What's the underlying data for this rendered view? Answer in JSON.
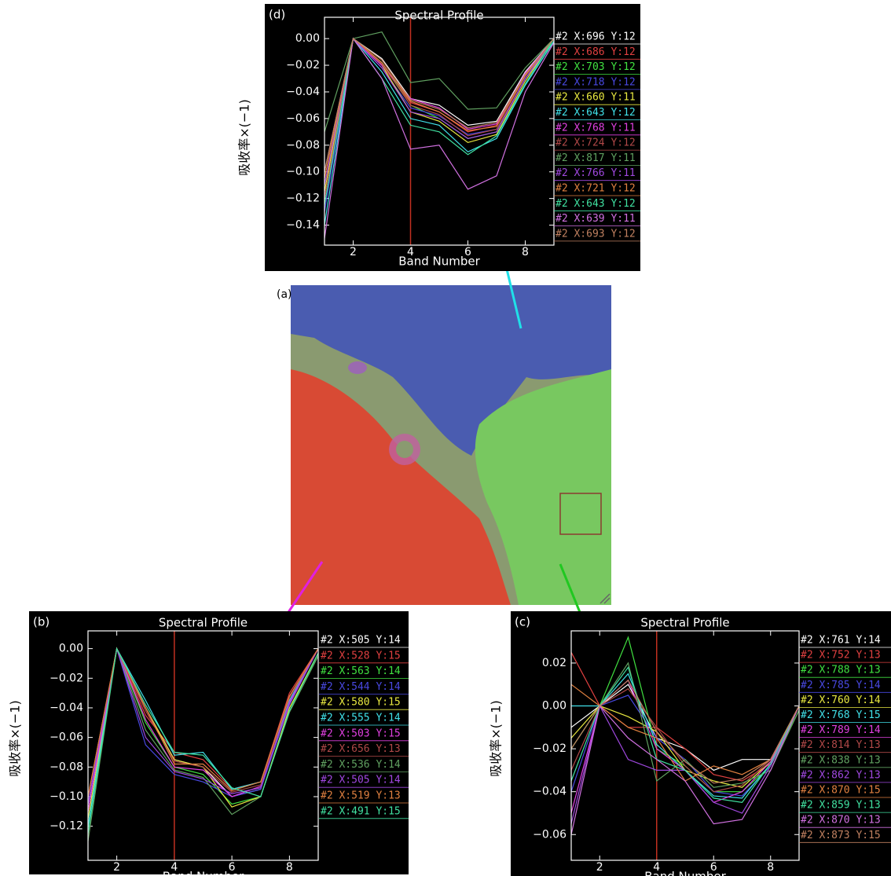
{
  "chart_data": [
    {
      "type": "line",
      "panel": "(d)",
      "title": "Spectral Profile",
      "x_label": "Band Number",
      "y_label": "吸收率×(−1)",
      "x": [
        1,
        2,
        3,
        4,
        5,
        6,
        7,
        8,
        9
      ],
      "xlim": [
        1,
        9
      ],
      "ylim": [
        -0.155,
        0.016
      ],
      "xticks": [
        2,
        4,
        6,
        8
      ],
      "yticks": [
        {
          "value": 0,
          "label": "0.00"
        },
        {
          "value": -0.02,
          "label": "−0.02"
        },
        {
          "value": -0.04,
          "label": "−0.04"
        },
        {
          "value": -0.06,
          "label": "−0.06"
        },
        {
          "value": -0.08,
          "label": "−0.08"
        },
        {
          "value": -0.1,
          "label": "−0.10"
        },
        {
          "value": -0.12,
          "label": "−0.12"
        },
        {
          "value": -0.14,
          "label": "−0.14"
        }
      ],
      "vertical_line": 4,
      "vertical_line_color": "#c03020",
      "series": [
        {
          "name": "#2 X:696 Y:12",
          "color": "#ffffff",
          "values": [
            -0.12,
            0,
            -0.015,
            -0.045,
            -0.05,
            -0.065,
            -0.062,
            -0.025,
            0
          ]
        },
        {
          "name": "#2 X:686 Y:12",
          "color": "#e04040",
          "values": [
            -0.11,
            0,
            -0.02,
            -0.048,
            -0.055,
            -0.07,
            -0.065,
            -0.028,
            0
          ]
        },
        {
          "name": "#2 X:703 Y:12",
          "color": "#40e040",
          "values": [
            -0.1,
            0,
            -0.018,
            -0.05,
            -0.06,
            -0.075,
            -0.07,
            -0.03,
            -0.002
          ]
        },
        {
          "name": "#2 X:718 Y:12",
          "color": "#4848e0",
          "values": [
            -0.13,
            0,
            -0.022,
            -0.052,
            -0.058,
            -0.072,
            -0.068,
            -0.03,
            0
          ]
        },
        {
          "name": "#2 X:660 Y:11",
          "color": "#e8e840",
          "values": [
            -0.115,
            0,
            -0.02,
            -0.055,
            -0.062,
            -0.078,
            -0.072,
            -0.032,
            0
          ]
        },
        {
          "name": "#2 X:643 Y:12",
          "color": "#40e0e8",
          "values": [
            -0.14,
            0,
            -0.025,
            -0.06,
            -0.065,
            -0.085,
            -0.075,
            -0.035,
            -0.002
          ]
        },
        {
          "name": "#2 X:768 Y:11",
          "color": "#e040e0",
          "values": [
            -0.1,
            0,
            -0.02,
            -0.045,
            -0.052,
            -0.068,
            -0.064,
            -0.026,
            0
          ]
        },
        {
          "name": "#2 X:724 Y:12",
          "color": "#b04848",
          "values": [
            -0.12,
            0,
            -0.019,
            -0.05,
            -0.057,
            -0.073,
            -0.068,
            -0.03,
            0
          ]
        },
        {
          "name": "#2 X:817 Y:11",
          "color": "#60a060",
          "values": [
            -0.07,
            0,
            0.005,
            -0.033,
            -0.03,
            -0.053,
            -0.052,
            -0.022,
            0
          ]
        },
        {
          "name": "#2 X:766 Y:11",
          "color": "#a048e0",
          "values": [
            -0.11,
            0,
            -0.022,
            -0.055,
            -0.06,
            -0.075,
            -0.07,
            -0.03,
            0
          ]
        },
        {
          "name": "#2 X:721 Y:12",
          "color": "#e08040",
          "values": [
            -0.105,
            0,
            -0.018,
            -0.047,
            -0.055,
            -0.069,
            -0.066,
            -0.028,
            0
          ]
        },
        {
          "name": "#2 X:643 Y:12",
          "color": "#40e0a0",
          "values": [
            -0.125,
            0,
            -0.03,
            -0.065,
            -0.07,
            -0.087,
            -0.073,
            -0.034,
            0
          ]
        },
        {
          "name": "#2 X:639 Y:11",
          "color": "#d070e0",
          "values": [
            -0.15,
            0,
            -0.03,
            -0.083,
            -0.08,
            -0.113,
            -0.103,
            -0.04,
            -0.003
          ]
        },
        {
          "name": "#2 X:693 Y:12",
          "color": "#c08060",
          "values": [
            -0.1,
            0,
            -0.016,
            -0.046,
            -0.053,
            -0.067,
            -0.063,
            -0.027,
            0
          ]
        }
      ]
    },
    {
      "type": "line",
      "panel": "(b)",
      "title": "Spectral Profile",
      "x_label": "Band Number",
      "y_label": "吸收率×(−1)",
      "x": [
        1,
        2,
        3,
        4,
        5,
        6,
        7,
        8,
        9
      ],
      "xlim": [
        1,
        9
      ],
      "ylim": [
        -0.143,
        0.012
      ],
      "xticks": [
        2,
        4,
        6,
        8
      ],
      "yticks": [
        {
          "value": 0,
          "label": "0.00"
        },
        {
          "value": -0.02,
          "label": "−0.02"
        },
        {
          "value": -0.04,
          "label": "−0.04"
        },
        {
          "value": -0.06,
          "label": "−0.06"
        },
        {
          "value": -0.08,
          "label": "−0.08"
        },
        {
          "value": -0.1,
          "label": "−0.10"
        },
        {
          "value": -0.12,
          "label": "−0.12"
        }
      ],
      "vertical_line": 4,
      "vertical_line_color": "#c03020",
      "series": [
        {
          "name": "#2 X:505 Y:14",
          "color": "#ffffff",
          "values": [
            -0.11,
            0,
            -0.04,
            -0.075,
            -0.08,
            -0.1,
            -0.095,
            -0.035,
            0
          ]
        },
        {
          "name": "#2 X:528 Y:15",
          "color": "#e04040",
          "values": [
            -0.1,
            0,
            -0.045,
            -0.07,
            -0.075,
            -0.095,
            -0.09,
            -0.03,
            0
          ]
        },
        {
          "name": "#2 X:563 Y:14",
          "color": "#40e040",
          "values": [
            -0.12,
            0,
            -0.05,
            -0.08,
            -0.085,
            -0.105,
            -0.1,
            -0.04,
            -0.005
          ]
        },
        {
          "name": "#2 X:544 Y:14",
          "color": "#4848e0",
          "values": [
            -0.105,
            0,
            -0.065,
            -0.085,
            -0.09,
            -0.1,
            -0.095,
            -0.038,
            0
          ]
        },
        {
          "name": "#2 X:580 Y:15",
          "color": "#e8e840",
          "values": [
            -0.115,
            0,
            -0.04,
            -0.075,
            -0.08,
            -0.107,
            -0.1,
            -0.04,
            -0.003
          ]
        },
        {
          "name": "#2 X:555 Y:14",
          "color": "#40e0e8",
          "values": [
            -0.12,
            0,
            -0.035,
            -0.072,
            -0.07,
            -0.095,
            -0.09,
            -0.035,
            0
          ]
        },
        {
          "name": "#2 X:503 Y:15",
          "color": "#e040e0",
          "values": [
            -0.11,
            0,
            -0.048,
            -0.08,
            -0.082,
            -0.1,
            -0.093,
            -0.037,
            0
          ]
        },
        {
          "name": "#2 X:656 Y:13",
          "color": "#b04848",
          "values": [
            -0.1,
            0,
            -0.042,
            -0.076,
            -0.08,
            -0.097,
            -0.092,
            -0.033,
            0
          ]
        },
        {
          "name": "#2 X:536 Y:14",
          "color": "#60a060",
          "values": [
            -0.13,
            0,
            -0.055,
            -0.082,
            -0.087,
            -0.112,
            -0.1,
            -0.043,
            -0.005
          ]
        },
        {
          "name": "#2 X:505 Y:14",
          "color": "#a048e0",
          "values": [
            -0.105,
            0,
            -0.06,
            -0.083,
            -0.088,
            -0.098,
            -0.094,
            -0.036,
            0
          ]
        },
        {
          "name": "#2 X:519 Y:13",
          "color": "#e08040",
          "values": [
            -0.1,
            0,
            -0.04,
            -0.078,
            -0.078,
            -0.096,
            -0.09,
            -0.032,
            0
          ]
        },
        {
          "name": "#2 X:491 Y:15",
          "color": "#40e0a0",
          "values": [
            -0.125,
            0,
            -0.038,
            -0.07,
            -0.072,
            -0.094,
            -0.1,
            -0.042,
            -0.003
          ]
        }
      ]
    },
    {
      "type": "line",
      "panel": "(c)",
      "title": "Spectral Profile",
      "x_label": "Band Number",
      "y_label": "吸收率×(−1)",
      "x": [
        1,
        2,
        3,
        4,
        5,
        6,
        7,
        8,
        9
      ],
      "xlim": [
        1,
        9
      ],
      "ylim": [
        -0.072,
        0.035
      ],
      "xticks": [
        2,
        4,
        6,
        8
      ],
      "yticks": [
        {
          "value": 0.02,
          "label": "0.02"
        },
        {
          "value": 0,
          "label": "0.00"
        },
        {
          "value": -0.02,
          "label": "−0.02"
        },
        {
          "value": -0.04,
          "label": "−0.04"
        },
        {
          "value": -0.06,
          "label": "−0.06"
        }
      ],
      "vertical_line": 4,
      "vertical_line_color": "#c03020",
      "series": [
        {
          "name": "#2 X:761 Y:14",
          "color": "#ffffff",
          "values": [
            -0.01,
            0,
            0.01,
            -0.015,
            -0.02,
            -0.03,
            -0.025,
            -0.025,
            0
          ]
        },
        {
          "name": "#2 X:752 Y:13",
          "color": "#e04040",
          "values": [
            0.025,
            0,
            -0.01,
            -0.01,
            -0.02,
            -0.032,
            -0.035,
            -0.027,
            0
          ]
        },
        {
          "name": "#2 X:788 Y:13",
          "color": "#40e040",
          "values": [
            -0.02,
            0,
            0.032,
            -0.02,
            -0.028,
            -0.04,
            -0.04,
            -0.028,
            -0.002
          ]
        },
        {
          "name": "#2 X:785 Y:14",
          "color": "#4848e0",
          "values": [
            -0.04,
            0,
            0.005,
            -0.015,
            -0.025,
            -0.04,
            -0.042,
            -0.028,
            0
          ]
        },
        {
          "name": "#2 X:760 Y:14",
          "color": "#e8e840",
          "values": [
            -0.015,
            0,
            -0.005,
            -0.012,
            -0.03,
            -0.035,
            -0.038,
            -0.026,
            0
          ]
        },
        {
          "name": "#2 X:768 Y:15",
          "color": "#40e0e8",
          "values": [
            0,
            0,
            0.015,
            -0.018,
            -0.03,
            -0.042,
            -0.043,
            -0.027,
            0
          ]
        },
        {
          "name": "#2 X:789 Y:14",
          "color": "#e040e0",
          "values": [
            -0.05,
            0,
            0.012,
            -0.02,
            -0.03,
            -0.045,
            -0.04,
            -0.026,
            0
          ]
        },
        {
          "name": "#2 X:814 Y:13",
          "color": "#b04848",
          "values": [
            -0.03,
            0,
            0.008,
            -0.01,
            -0.028,
            -0.04,
            -0.037,
            -0.025,
            0
          ]
        },
        {
          "name": "#2 X:838 Y:13",
          "color": "#60a060",
          "values": [
            -0.02,
            0,
            0.02,
            -0.035,
            -0.025,
            -0.038,
            -0.036,
            -0.03,
            -0.002
          ]
        },
        {
          "name": "#2 X:862 Y:13",
          "color": "#a048e0",
          "values": [
            -0.055,
            0,
            -0.025,
            -0.03,
            -0.03,
            -0.045,
            -0.05,
            -0.028,
            0
          ]
        },
        {
          "name": "#2 X:870 Y:15",
          "color": "#e08040",
          "values": [
            0.01,
            0,
            -0.01,
            -0.015,
            -0.035,
            -0.028,
            -0.032,
            -0.025,
            0
          ]
        },
        {
          "name": "#2 X:859 Y:13",
          "color": "#40e0a0",
          "values": [
            -0.035,
            0,
            0.018,
            -0.025,
            -0.03,
            -0.043,
            -0.045,
            -0.027,
            0
          ]
        },
        {
          "name": "#2 X:870 Y:13",
          "color": "#d070e0",
          "values": [
            -0.06,
            0,
            -0.015,
            -0.025,
            -0.035,
            -0.055,
            -0.053,
            -0.03,
            0
          ]
        },
        {
          "name": "#2 X:873 Y:15",
          "color": "#c08060",
          "values": [
            -0.02,
            0,
            0.012,
            -0.012,
            -0.026,
            -0.036,
            -0.034,
            -0.025,
            0
          ]
        }
      ]
    }
  ],
  "image_label": "(a)"
}
